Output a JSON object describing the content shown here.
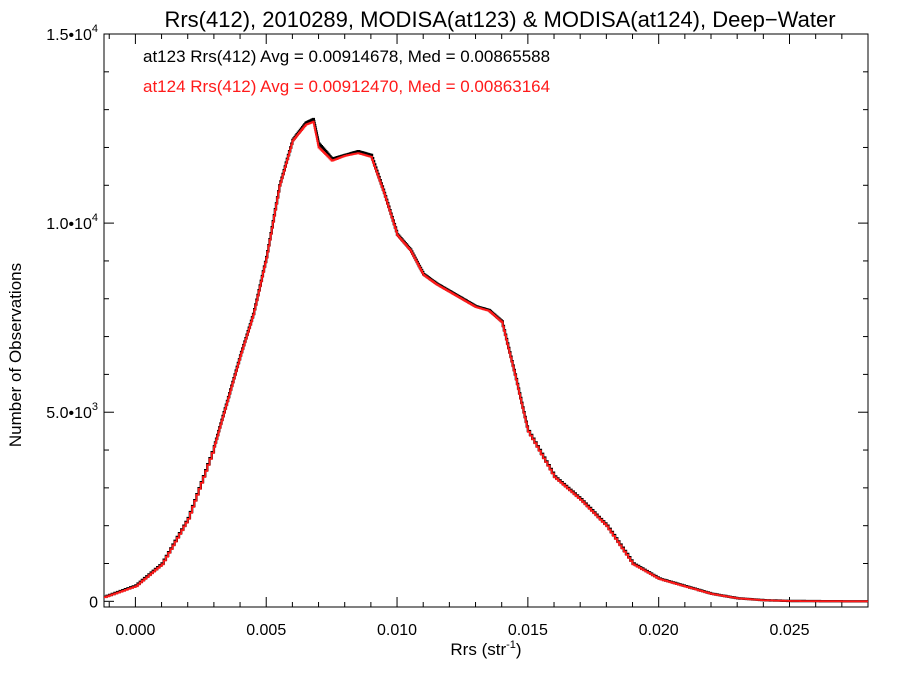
{
  "chart_data": {
    "type": "line",
    "title": "Rrs(412), 2010289, MODISA(at123) & MODISA(at124), Deep−Water",
    "xlabel": "Rrs (str",
    "xlabel_sup": "-1",
    "xlabel_close": ")",
    "ylabel": "Number of Observations",
    "xlim": [
      -0.0012,
      0.028
    ],
    "ylim": [
      -150,
      15000
    ],
    "x_ticks": [
      {
        "value": 0.0,
        "label": "0.000"
      },
      {
        "value": 0.005,
        "label": "0.005"
      },
      {
        "value": 0.01,
        "label": "0.010"
      },
      {
        "value": 0.015,
        "label": "0.015"
      },
      {
        "value": 0.02,
        "label": "0.020"
      },
      {
        "value": 0.025,
        "label": "0.025"
      }
    ],
    "y_ticks": [
      {
        "value": 0,
        "label": "0",
        "sup": ""
      },
      {
        "value": 5000,
        "label": "5.0•10",
        "sup": "3"
      },
      {
        "value": 10000,
        "label": "1.0•10",
        "sup": "4"
      },
      {
        "value": 15000,
        "label": "1.5•10",
        "sup": "4"
      }
    ],
    "legend_placement": "top-left",
    "series": [
      {
        "name": "at123 Rrs(412) Avg = 0.00914678, Med = 0.00865588",
        "color": "#000000",
        "x": [
          -0.0012,
          0.0,
          0.001,
          0.002,
          0.003,
          0.0035,
          0.004,
          0.0045,
          0.005,
          0.0055,
          0.006,
          0.0065,
          0.0068,
          0.007,
          0.0075,
          0.008,
          0.0085,
          0.009,
          0.0095,
          0.01,
          0.0105,
          0.011,
          0.0115,
          0.012,
          0.0125,
          0.013,
          0.0135,
          0.014,
          0.0145,
          0.015,
          0.016,
          0.017,
          0.018,
          0.019,
          0.02,
          0.021,
          0.022,
          0.023,
          0.024,
          0.025,
          0.026,
          0.027,
          0.028
        ],
        "y": [
          120,
          420,
          1000,
          2200,
          4100,
          5300,
          6500,
          7600,
          9100,
          11000,
          12200,
          12650,
          12750,
          12100,
          11700,
          11800,
          11900,
          11800,
          10800,
          9700,
          9300,
          8650,
          8400,
          8200,
          8000,
          7800,
          7700,
          7400,
          6000,
          4500,
          3300,
          2700,
          2000,
          1000,
          600,
          400,
          200,
          80,
          30,
          10,
          5,
          2,
          1
        ]
      },
      {
        "name": "at124 Rrs(412) Avg = 0.00912470, Med = 0.00863164",
        "color": "#ff1a1a",
        "x": [
          -0.0012,
          0.0,
          0.001,
          0.002,
          0.003,
          0.0035,
          0.004,
          0.0045,
          0.005,
          0.0055,
          0.006,
          0.0065,
          0.0068,
          0.007,
          0.0075,
          0.008,
          0.0085,
          0.009,
          0.0095,
          0.01,
          0.0105,
          0.011,
          0.0115,
          0.012,
          0.0125,
          0.013,
          0.0135,
          0.014,
          0.0145,
          0.015,
          0.016,
          0.017,
          0.018,
          0.019,
          0.02,
          0.021,
          0.022,
          0.023,
          0.024,
          0.025,
          0.026,
          0.027,
          0.028
        ],
        "y": [
          110,
          400,
          980,
          2180,
          4080,
          5280,
          6480,
          7580,
          9080,
          10980,
          12180,
          12600,
          12680,
          12000,
          11650,
          11780,
          11850,
          11750,
          10780,
          9680,
          9280,
          8630,
          8380,
          8180,
          7980,
          7780,
          7680,
          7380,
          5980,
          4480,
          3280,
          2680,
          1980,
          980,
          590,
          390,
          195,
          78,
          28,
          9,
          4,
          2,
          1
        ]
      }
    ]
  }
}
